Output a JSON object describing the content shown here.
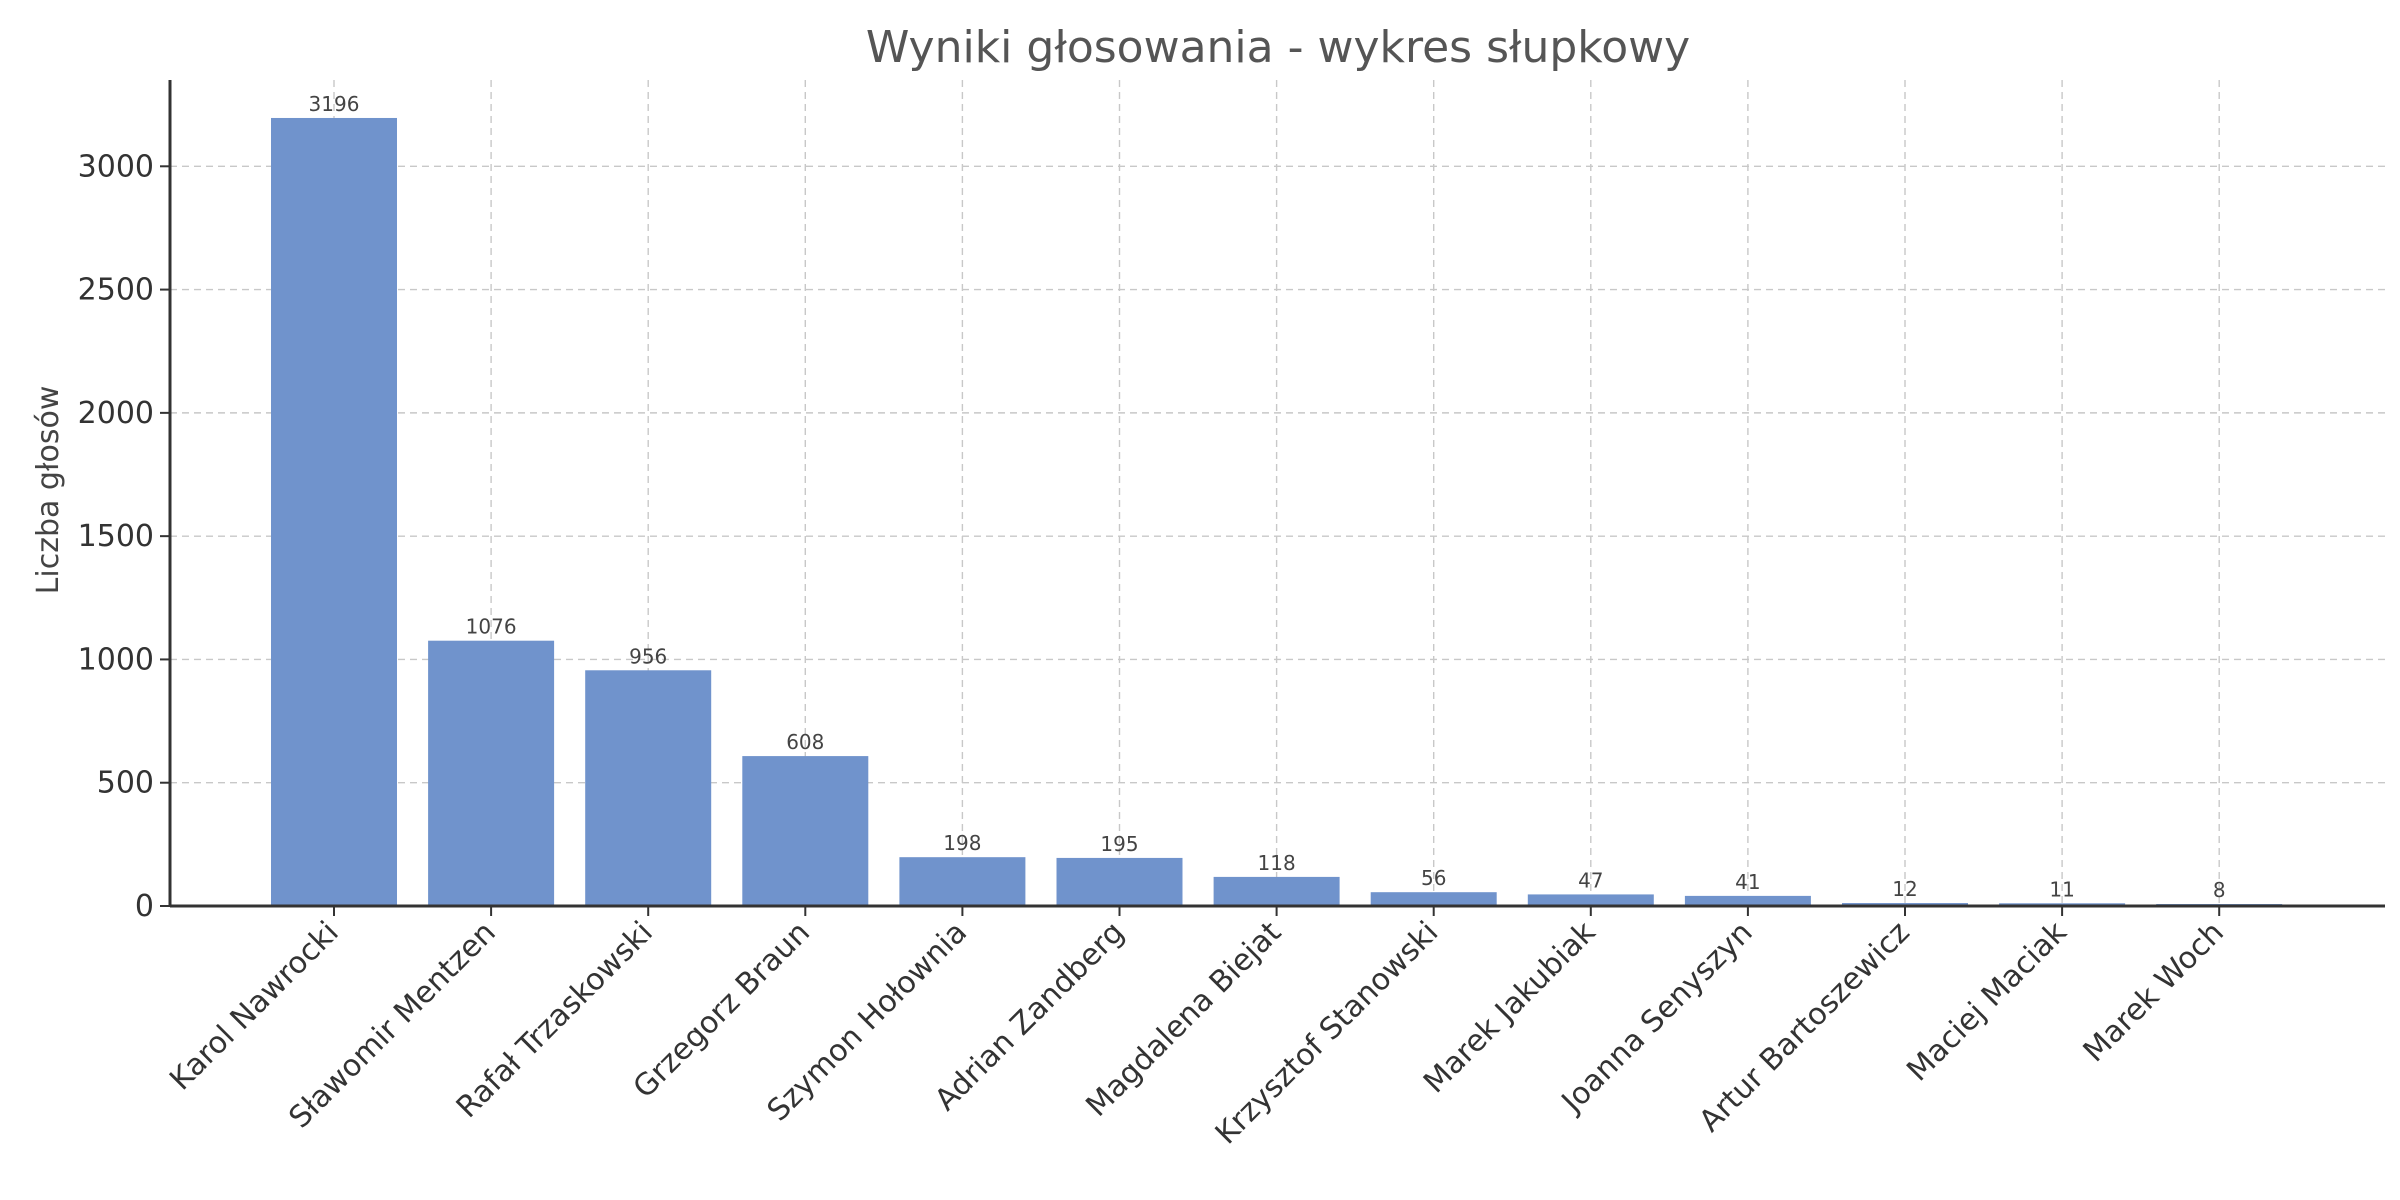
{
  "chart_data": {
    "type": "bar",
    "title": "Wyniki głosowania - wykres słupkowy",
    "xlabel": "",
    "ylabel": "Liczba głosów",
    "ylim": [
      0,
      3350
    ],
    "yticks": [
      0,
      500,
      1000,
      1500,
      2000,
      2500,
      3000
    ],
    "grid": true,
    "categories": [
      "Karol Nawrocki",
      "Sławomir Mentzen",
      "Rafał Trzaskowski",
      "Grzegorz Braun",
      "Szymon Hołownia",
      "Adrian Zandberg",
      "Magdalena Biejat",
      "Krzysztof Stanowski",
      "Marek Jakubiak",
      "Joanna Senyszyn",
      "Artur Bartoszewicz",
      "Maciej Maciak",
      "Marek Woch"
    ],
    "values": [
      3196,
      1076,
      956,
      608,
      198,
      195,
      118,
      56,
      47,
      41,
      12,
      11,
      8
    ],
    "colors": {
      "bar": "#7093cc",
      "grid": "#c8c8c8",
      "axis": "#333333",
      "title": "#555555"
    }
  }
}
